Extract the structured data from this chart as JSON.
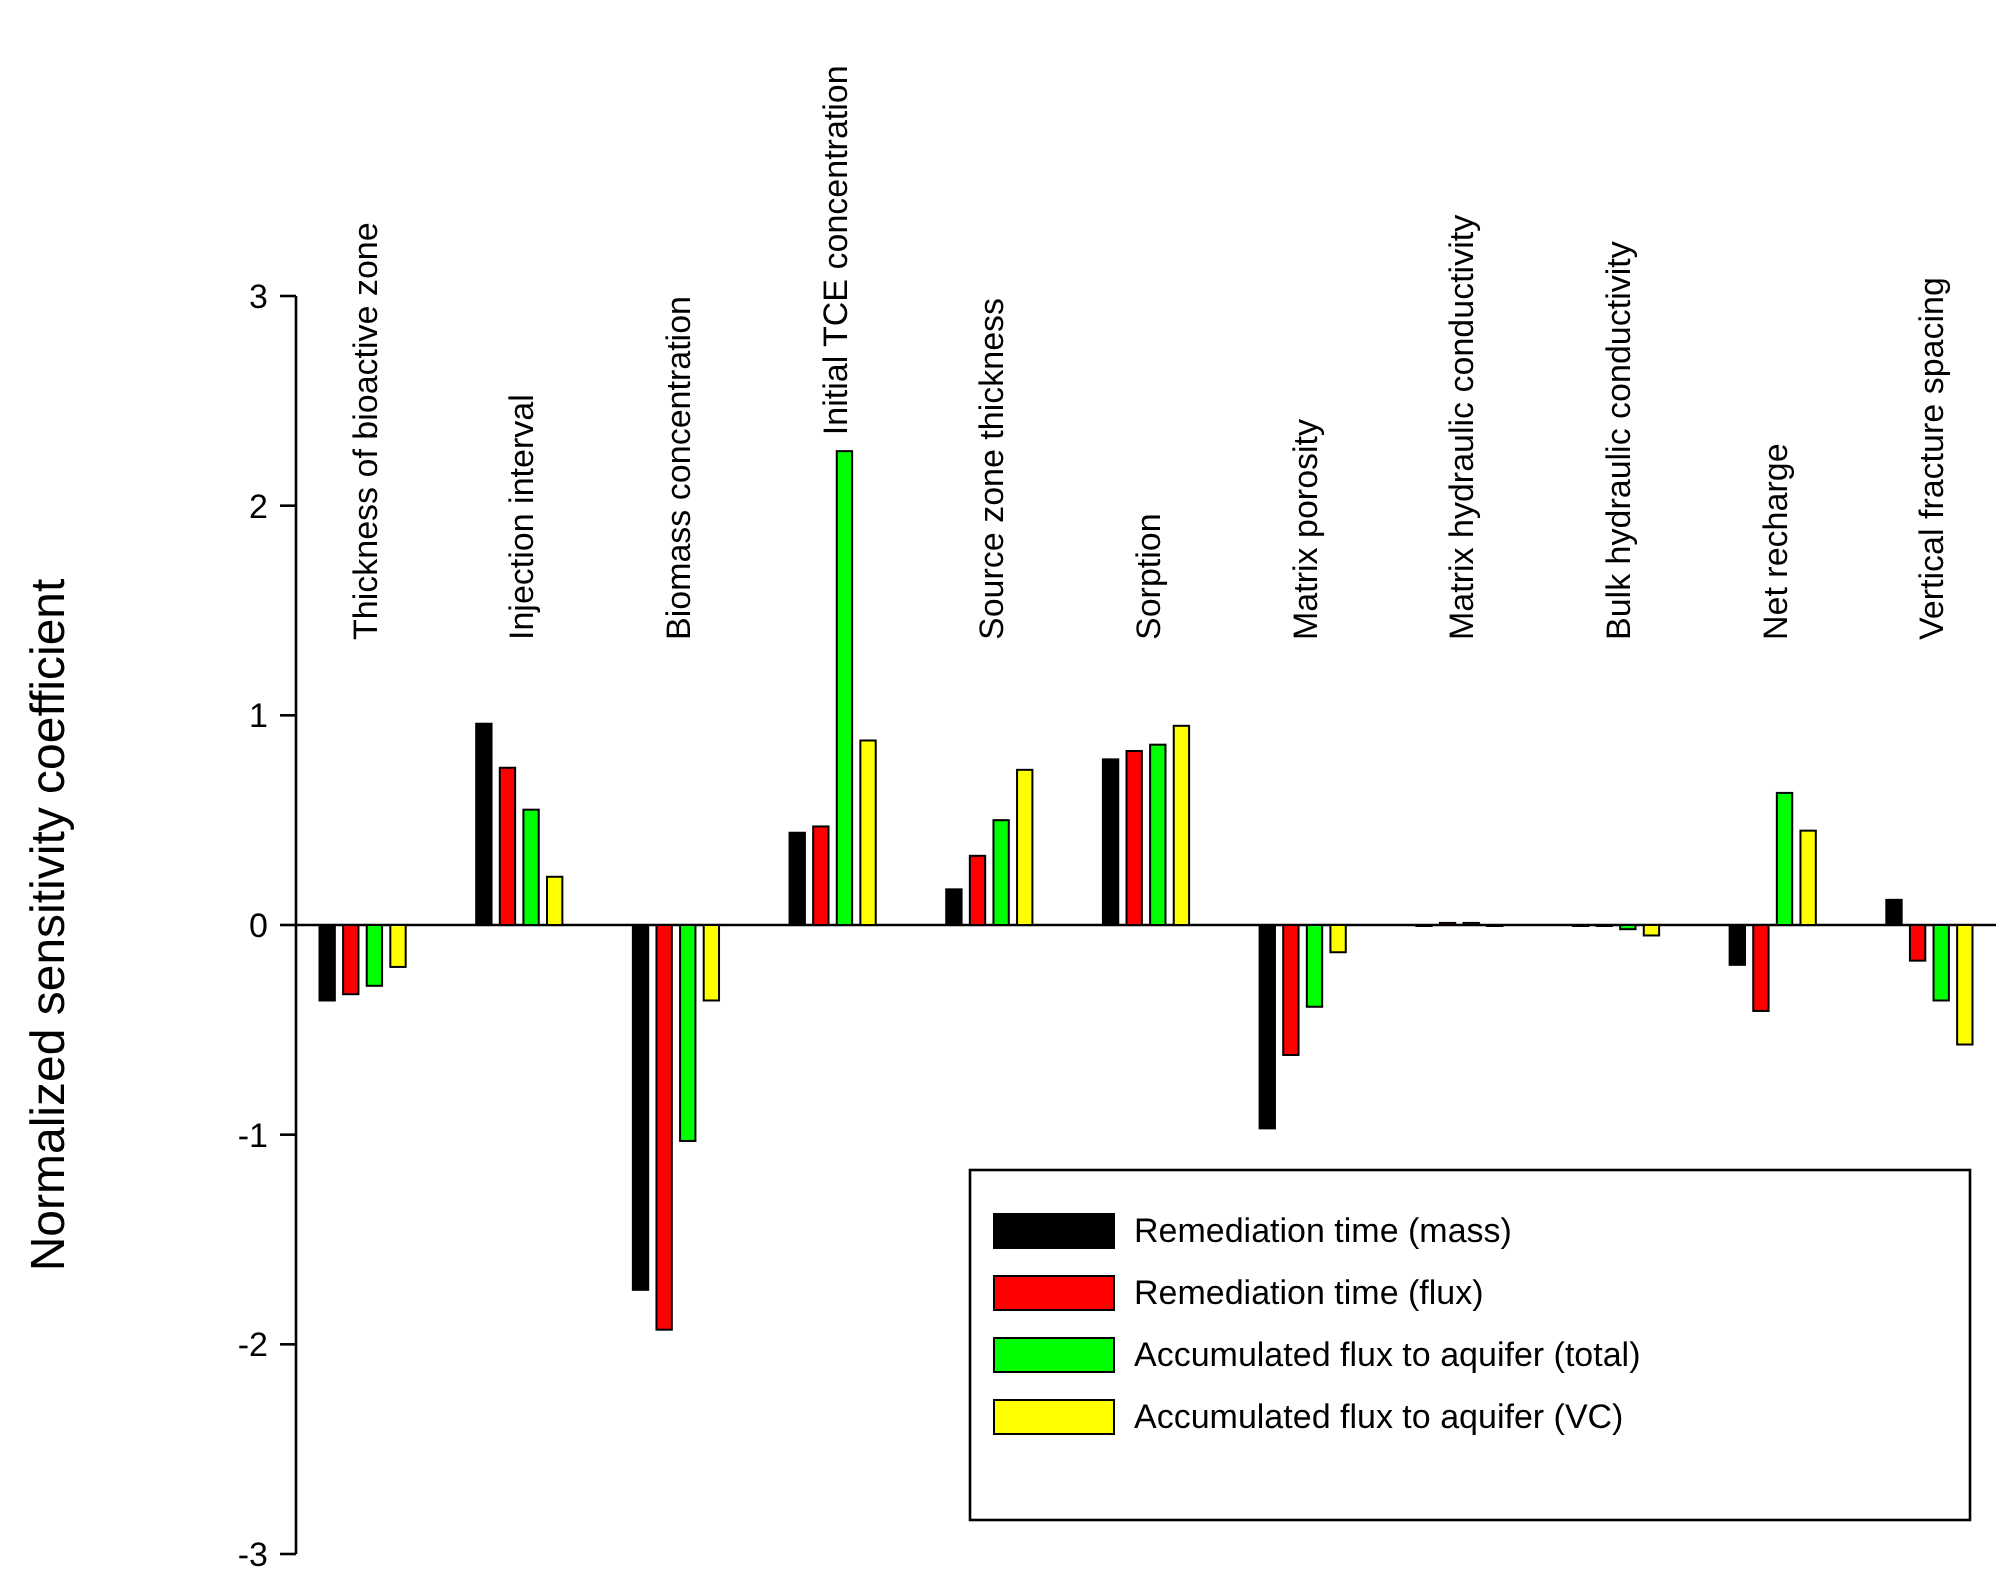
{
  "chart_data": {
    "type": "bar",
    "ylabel": "Normalized sensitivity coefficient",
    "categories": [
      "Thickness of bioactive zone",
      "Injection interval",
      "Biomass concentration",
      "Initial TCE concentration",
      "Source zone thickness",
      "Sorption",
      "Matrix porosity",
      "Matrix hydraulic conductivity",
      "Bulk hydraulic conductivity",
      "Net recharge",
      "Vertical fracture spacing"
    ],
    "series": [
      {
        "name": "Remediation time (mass)",
        "color": "#000000",
        "values": [
          -0.36,
          0.96,
          -1.74,
          0.44,
          0.17,
          0.79,
          -0.97,
          0,
          0,
          -0.19,
          0.12
        ]
      },
      {
        "name": "Remediation time (flux)",
        "color": "#ff0000",
        "values": [
          -0.33,
          0.75,
          -1.93,
          0.47,
          0.33,
          0.83,
          -0.62,
          0.01,
          0,
          -0.41,
          -0.17
        ]
      },
      {
        "name": "Accumulated flux to aquifer (total)",
        "color": "#00ff00",
        "values": [
          -0.29,
          0.55,
          -1.03,
          2.26,
          0.5,
          0.86,
          -0.39,
          0.01,
          -0.02,
          0.63,
          -0.36
        ]
      },
      {
        "name": "Accumulated flux to aquifer (VC)",
        "color": "#ffff00",
        "values": [
          -0.2,
          0.23,
          -0.36,
          0.88,
          0.74,
          0.95,
          -0.13,
          0,
          -0.05,
          0.45,
          -0.57
        ]
      }
    ],
    "ylim": [
      -3,
      3
    ],
    "yticks": [
      -3,
      -2,
      -1,
      0,
      1,
      2,
      3
    ],
    "legend": "bottom right"
  }
}
